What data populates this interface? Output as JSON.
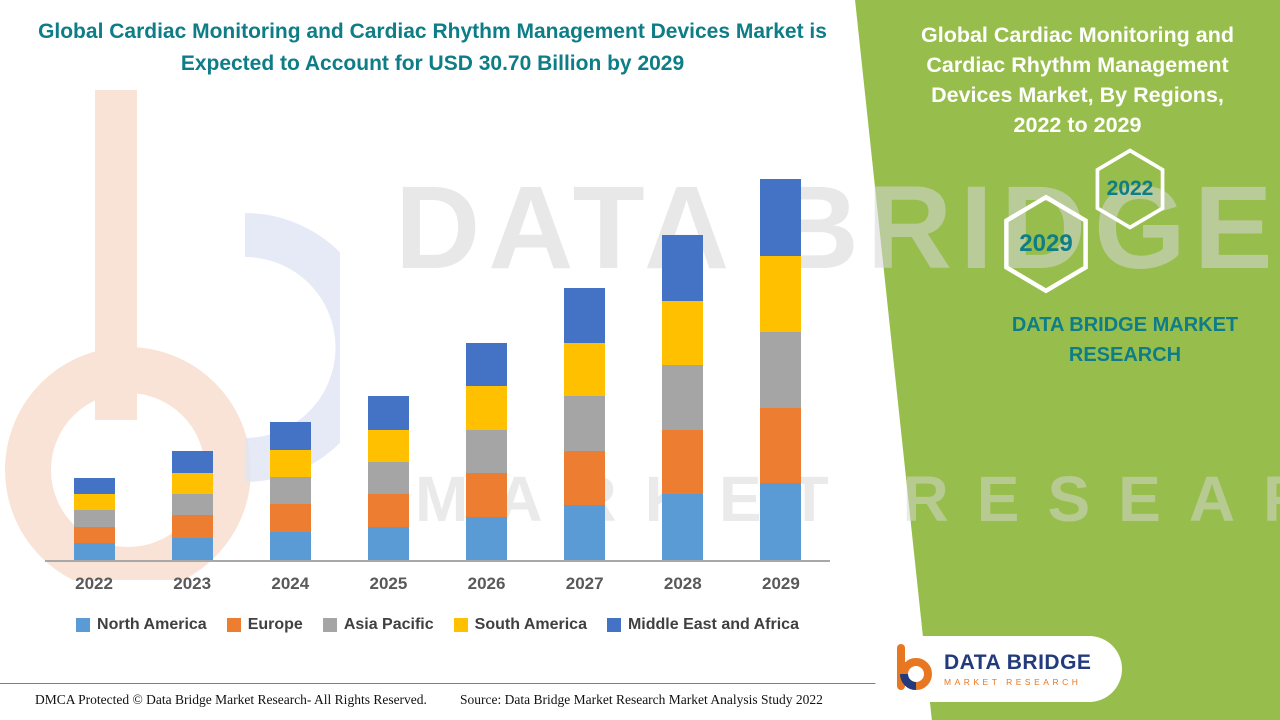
{
  "left": {
    "title": "Global Cardiac Monitoring and Cardiac Rhythm Management Devices Market is Expected to Account for USD 30.70 Billion by 2029",
    "footer_left": "DMCA Protected © Data Bridge Market Research- All Rights Reserved.",
    "footer_source": "Source: Data Bridge Market Research Market Analysis Study 2022"
  },
  "watermark": {
    "line1": "DATA BRIDGE",
    "line2": "MARKET RESEARCH"
  },
  "right": {
    "heading": "Global Cardiac Monitoring and Cardiac Rhythm Management Devices Market, By Regions, 2022 to 2029",
    "hex_top": "2022",
    "hex_bottom": "2029",
    "brand_caption": "DATA BRIDGE MARKET RESEARCH",
    "logo_title": "DATA BRIDGE",
    "logo_subtitle": "MARKET RESEARCH"
  },
  "colors": {
    "accent_teal": "#0E7D87",
    "panel_green": "#97BE4C",
    "logo_orange": "#E87722",
    "logo_navy": "#233B7D"
  },
  "chart_data": {
    "type": "bar",
    "stacked": true,
    "title": "Global Cardiac Monitoring and Cardiac Rhythm Management Devices Market, By Regions, 2022 to 2029",
    "xlabel": "",
    "ylabel": "",
    "ylim": [
      0,
      35
    ],
    "grid": false,
    "legend_position": "bottom",
    "value_unit": "USD Billion",
    "highlight_value": "USD 30.70 Billion by 2029",
    "categories": [
      "2022",
      "2023",
      "2024",
      "2025",
      "2026",
      "2027",
      "2028",
      "2029"
    ],
    "series": [
      {
        "name": "North America",
        "color": "#5B9BD5",
        "values": [
          1.4,
          1.8,
          2.3,
          2.7,
          3.5,
          4.4,
          5.3,
          6.2
        ]
      },
      {
        "name": "Europe",
        "color": "#ED7D31",
        "values": [
          1.3,
          1.8,
          2.2,
          2.6,
          3.5,
          4.4,
          5.2,
          6.1
        ]
      },
      {
        "name": "Asia Pacific",
        "color": "#A5A5A5",
        "values": [
          1.3,
          1.7,
          2.2,
          2.6,
          3.5,
          4.4,
          5.2,
          6.1
        ]
      },
      {
        "name": "South America",
        "color": "#FFC000",
        "values": [
          1.3,
          1.7,
          2.2,
          2.6,
          3.5,
          4.3,
          5.2,
          6.1
        ]
      },
      {
        "name": "Middle East and Africa",
        "color": "#4472C4",
        "values": [
          1.3,
          1.8,
          2.2,
          2.7,
          3.5,
          4.4,
          5.3,
          6.2
        ]
      }
    ],
    "totals": [
      6.6,
      8.8,
      11.1,
      13.2,
      17.5,
      21.9,
      26.2,
      30.7
    ]
  }
}
